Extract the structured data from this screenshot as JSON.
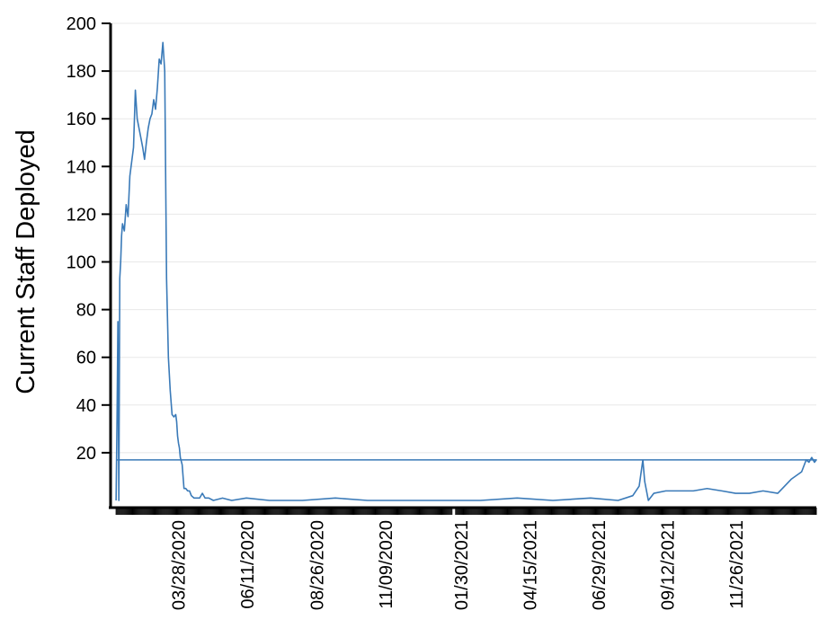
{
  "chart_data": {
    "type": "line",
    "ylabel": "Current Staff Deployed",
    "xlabel": "",
    "ylim": [
      0,
      200
    ],
    "yticks": [
      20,
      40,
      60,
      80,
      100,
      120,
      140,
      160,
      180,
      200
    ],
    "xlim": [
      "2020-01-14",
      "2022-02-21"
    ],
    "x_tick_labels": [
      "03/28/2020",
      "06/11/2020",
      "08/26/2020",
      "11/09/2020",
      "01/30/2021",
      "04/15/2021",
      "06/29/2021",
      "09/12/2021",
      "11/26/2021"
    ],
    "x_tick_dates": [
      "2020-03-28",
      "2020-06-11",
      "2020-08-26",
      "2020-11-09",
      "2021-01-30",
      "2021-04-15",
      "2021-06-29",
      "2021-09-12",
      "2021-11-26"
    ],
    "grid": true,
    "series": [
      {
        "color": "#3a7ab8",
        "x": [
          "2020-01-20",
          "2020-01-21",
          "2020-01-22",
          "2020-01-23",
          "2020-01-24",
          "2020-01-25",
          "2020-01-26",
          "2020-01-27",
          "2020-01-29",
          "2020-01-31",
          "2020-02-02",
          "2020-02-04",
          "2020-02-06",
          "2020-02-08",
          "2020-02-10",
          "2020-02-12",
          "2020-02-14",
          "2020-02-16",
          "2020-02-18",
          "2020-02-20",
          "2020-02-22",
          "2020-02-24",
          "2020-02-26",
          "2020-02-28",
          "2020-03-01",
          "2020-03-03",
          "2020-03-05",
          "2020-03-07",
          "2020-03-09",
          "2020-03-11",
          "2020-03-13",
          "2020-03-15",
          "2020-03-17",
          "2020-03-19",
          "2020-03-21",
          "2020-03-23",
          "2020-03-25",
          "2020-03-26",
          "2020-03-27",
          "2020-03-28",
          "2020-03-29",
          "2020-03-30",
          "2020-04-01",
          "2020-04-03",
          "2020-04-05",
          "2020-04-07",
          "2020-04-09",
          "2020-04-11",
          "2020-04-14",
          "2020-04-17",
          "2020-04-20",
          "2020-04-23",
          "2020-04-26",
          "2020-04-30",
          "2020-05-05",
          "2020-05-15",
          "2020-05-25",
          "2020-06-10",
          "2020-07-05",
          "2020-08-10",
          "2020-09-15",
          "2020-10-20",
          "2020-11-25",
          "2021-01-10",
          "2021-02-20",
          "2021-04-01",
          "2021-05-10",
          "2021-06-20",
          "2021-07-20",
          "2021-08-05",
          "2021-08-12",
          "2021-08-16",
          "2021-08-18",
          "2021-08-22",
          "2021-08-28",
          "2021-09-10",
          "2021-09-25",
          "2021-10-10",
          "2021-10-25",
          "2021-11-10",
          "2021-11-25",
          "2021-12-10",
          "2021-12-25",
          "2022-01-10",
          "2022-01-25",
          "2022-02-05",
          "2022-02-10",
          "2022-02-13",
          "2022-02-16",
          "2022-02-19",
          "2022-02-21",
          "2020-01-20"
        ],
        "y": [
          0,
          33,
          75,
          0,
          93,
          100,
          111,
          116,
          113,
          124,
          119,
          136,
          142,
          148,
          172,
          160,
          156,
          152,
          148,
          143,
          150,
          156,
          160,
          162,
          168,
          164,
          173,
          185,
          183,
          192,
          180,
          93,
          60,
          46,
          36,
          35,
          36,
          33,
          27,
          24,
          22,
          18,
          15,
          5,
          5,
          4,
          4,
          2,
          1,
          1,
          1,
          3,
          1,
          1,
          0,
          1,
          0,
          1,
          0,
          0,
          1,
          0,
          0,
          0,
          0,
          1,
          0,
          1,
          0,
          2,
          6,
          17,
          8,
          0,
          3,
          4,
          4,
          4,
          5,
          4,
          3,
          3,
          4,
          3,
          9,
          12,
          17,
          16,
          18,
          16,
          17,
          17
        ]
      }
    ]
  }
}
